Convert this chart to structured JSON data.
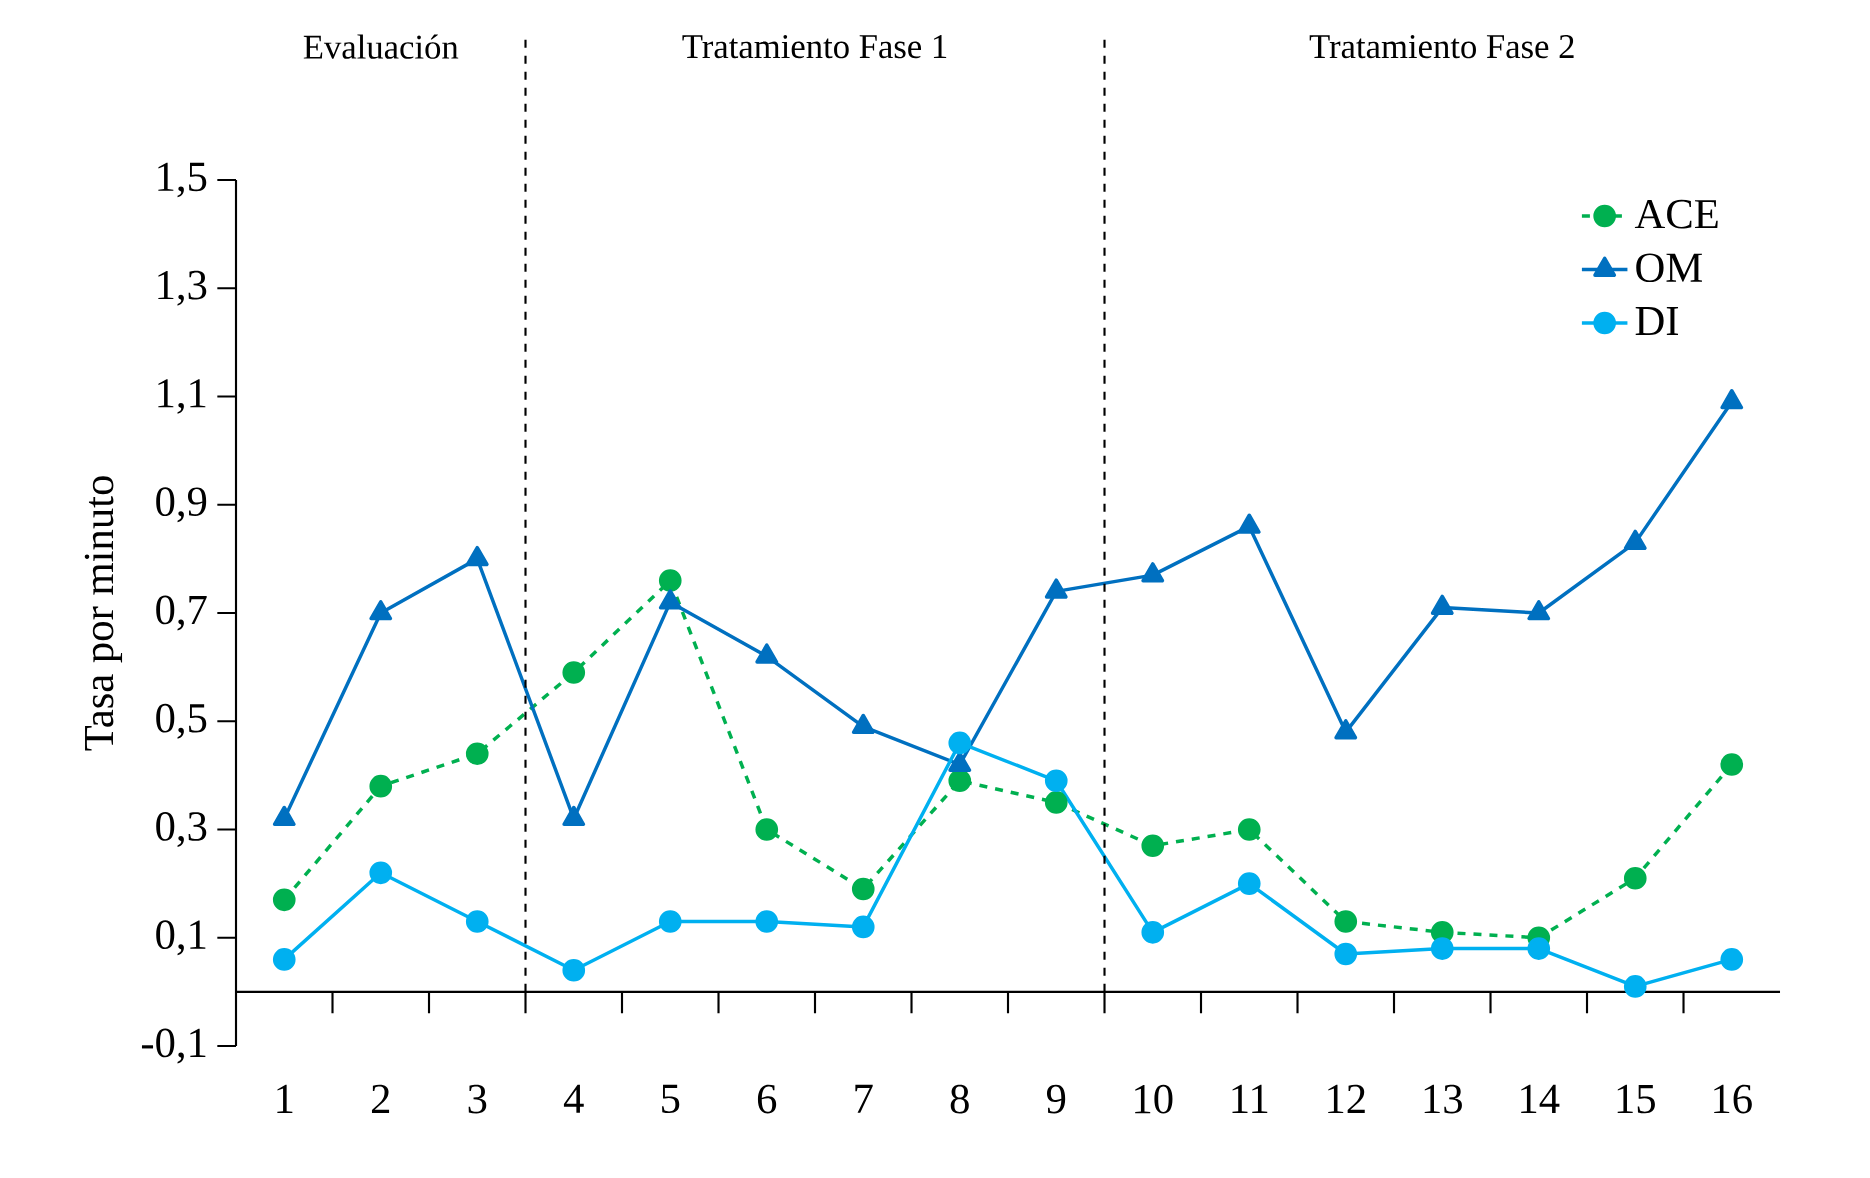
{
  "chart_data": {
    "type": "line",
    "ylabel": "Tasa por minuto",
    "annotations": [
      "Evaluación",
      "Tratamiento Fase 1",
      "Tratamiento Fase 2"
    ],
    "x": [
      1,
      2,
      3,
      4,
      5,
      6,
      7,
      8,
      9,
      10,
      11,
      12,
      13,
      14,
      15,
      16
    ],
    "xlim": [
      0.5,
      16.5
    ],
    "xticks": [
      1,
      2,
      3,
      4,
      5,
      6,
      7,
      8,
      9,
      10,
      11,
      12,
      13,
      14,
      15,
      16
    ],
    "ylim": [
      -0.1,
      1.5
    ],
    "yticks": [
      {
        "value": -0.1,
        "label": "-0,1"
      },
      {
        "value": 0.1,
        "label": "0,1"
      },
      {
        "value": 0.3,
        "label": "0,3"
      },
      {
        "value": 0.5,
        "label": "0,5"
      },
      {
        "value": 0.7,
        "label": "0,7"
      },
      {
        "value": 0.9,
        "label": "0,9"
      },
      {
        "value": 1.1,
        "label": "1,1"
      },
      {
        "value": 1.3,
        "label": "1,3"
      },
      {
        "value": 1.5,
        "label": "1,5"
      }
    ],
    "ref_lines": [
      {
        "axis": "x",
        "value": 3.5,
        "line_style": "dashed",
        "color": "#000000"
      },
      {
        "axis": "x",
        "value": 9.5,
        "line_style": "dashed",
        "color": "#000000"
      }
    ],
    "legend": "top right",
    "grid": false,
    "series": [
      {
        "name": "ACE",
        "color": "#00b050",
        "marker": "circle",
        "line_style": "dashed",
        "values": [
          0.17,
          0.38,
          0.44,
          0.59,
          0.76,
          0.3,
          0.19,
          0.39,
          0.35,
          0.27,
          0.3,
          0.13,
          0.11,
          0.1,
          0.21,
          0.42
        ]
      },
      {
        "name": "OM",
        "color": "#0070c0",
        "marker": "triangle",
        "line_style": "solid",
        "values": [
          0.32,
          0.7,
          0.8,
          0.32,
          0.72,
          0.62,
          0.49,
          0.42,
          0.74,
          0.77,
          0.86,
          0.48,
          0.71,
          0.7,
          0.83,
          1.09
        ]
      },
      {
        "name": "DI",
        "color": "#00b0f0",
        "marker": "circle",
        "line_style": "solid",
        "values": [
          0.06,
          0.22,
          0.13,
          0.04,
          0.13,
          0.13,
          0.12,
          0.46,
          0.39,
          0.11,
          0.2,
          0.07,
          0.08,
          0.08,
          0.01,
          0.06
        ]
      }
    ]
  }
}
